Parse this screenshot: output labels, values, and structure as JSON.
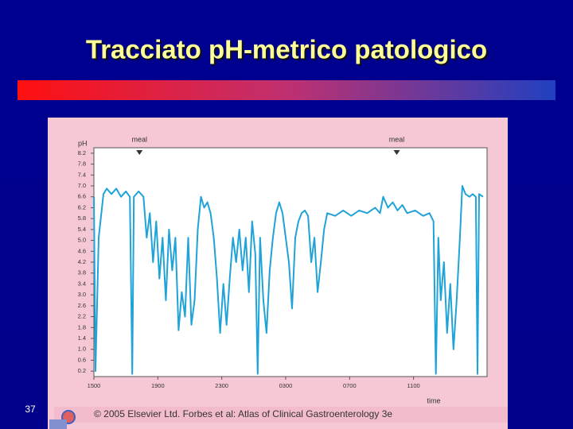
{
  "title": "Tracciato pH-metrico patologico",
  "page_number": "37",
  "copyright": "© 2005 Elsevier Ltd. Forbes et al: Atlas of Clinical Gastroenterology 3e",
  "chart_data": {
    "type": "line",
    "y_label": "pH",
    "x_label": "time",
    "color": "#1fa3d8",
    "xlim": [
      0,
      24.6
    ],
    "xticks": [
      {
        "value": 0,
        "label": "1500"
      },
      {
        "value": 4,
        "label": "1900"
      },
      {
        "value": 8,
        "label": "2300"
      },
      {
        "value": 12,
        "label": "0300"
      },
      {
        "value": 16,
        "label": "0700"
      },
      {
        "value": 20,
        "label": "1100"
      }
    ],
    "ylim": [
      0,
      8.4
    ],
    "yticks": [
      0.2,
      0.6,
      {
        "value": 1,
        "label": "1.0"
      },
      1.4,
      1.8,
      2.2,
      2.6,
      {
        "value": 3,
        "label": "3.0"
      },
      3.4,
      3.8,
      4.2,
      4.6,
      {
        "value": 5,
        "label": "5.0"
      },
      5.4,
      5.8,
      6.2,
      6.6,
      {
        "value": 7,
        "label": "7.0"
      },
      7.4,
      7.8,
      8.2
    ],
    "annotations": [
      {
        "text": "meal",
        "x": 2.85
      },
      {
        "text": "meal",
        "x": 18.95
      }
    ],
    "x": [
      0,
      0.1,
      0.3,
      0.6,
      0.8,
      1.1,
      1.4,
      1.7,
      2.0,
      2.25,
      2.4,
      2.5,
      2.8,
      3.1,
      3.3,
      3.5,
      3.7,
      3.9,
      4.1,
      4.3,
      4.5,
      4.7,
      4.9,
      5.1,
      5.3,
      5.5,
      5.7,
      5.9,
      6.1,
      6.3,
      6.5,
      6.7,
      6.9,
      7.1,
      7.3,
      7.5,
      7.7,
      7.9,
      8.1,
      8.3,
      8.5,
      8.7,
      8.9,
      9.1,
      9.3,
      9.5,
      9.7,
      9.9,
      10.1,
      10.25,
      10.4,
      10.6,
      10.8,
      11.0,
      11.2,
      11.4,
      11.6,
      11.8,
      12.0,
      12.2,
      12.4,
      12.6,
      12.8,
      13.0,
      13.2,
      13.4,
      13.6,
      13.8,
      14.0,
      14.2,
      14.4,
      14.6,
      15.1,
      15.6,
      16.1,
      16.6,
      17.1,
      17.6,
      17.9,
      18.1,
      18.4,
      18.7,
      19.0,
      19.3,
      19.6,
      20.1,
      20.6,
      21.0,
      21.25,
      21.4,
      21.55,
      21.7,
      21.9,
      22.1,
      22.3,
      22.5,
      22.7,
      22.9,
      23.05,
      23.25,
      23.5,
      23.7,
      23.9,
      24.0,
      24.1,
      24.35
    ],
    "values": [
      6.6,
      0.2,
      5.1,
      6.7,
      6.9,
      6.7,
      6.9,
      6.6,
      6.8,
      6.6,
      0.1,
      6.6,
      6.8,
      6.6,
      5.1,
      6.0,
      4.2,
      5.7,
      3.6,
      5.1,
      2.8,
      5.4,
      3.9,
      5.1,
      1.7,
      3.1,
      2.2,
      5.1,
      1.9,
      2.8,
      5.4,
      6.6,
      6.2,
      6.4,
      6.0,
      5.1,
      3.6,
      1.6,
      3.4,
      1.9,
      3.6,
      5.1,
      4.2,
      5.4,
      3.9,
      5.1,
      3.1,
      5.7,
      4.5,
      0.1,
      5.1,
      2.8,
      1.6,
      3.9,
      5.1,
      6.0,
      6.4,
      6.0,
      5.1,
      4.2,
      2.5,
      5.1,
      5.7,
      6.0,
      6.1,
      5.9,
      4.2,
      5.1,
      3.1,
      4.2,
      5.4,
      6.0,
      5.9,
      6.1,
      5.9,
      6.1,
      6.0,
      6.2,
      6.0,
      6.6,
      6.2,
      6.4,
      6.1,
      6.3,
      6.0,
      6.1,
      5.9,
      6.0,
      5.7,
      0.1,
      5.1,
      2.8,
      4.2,
      1.6,
      3.4,
      1.0,
      2.8,
      5.1,
      7.0,
      6.7,
      6.6,
      6.7,
      6.6,
      0.1,
      6.7,
      6.6
    ]
  }
}
